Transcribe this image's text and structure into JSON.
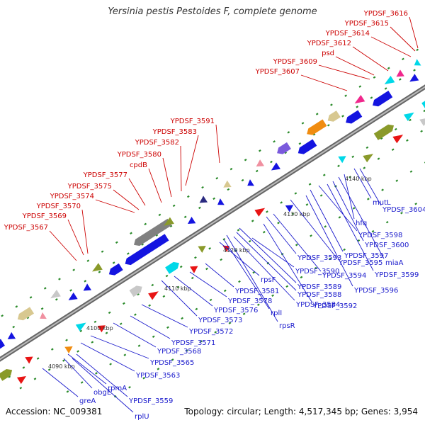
{
  "title": "Yersinia pestis Pestoides F, complete genome",
  "accession": "Accession: NC_009381",
  "summary": "Topology: circular; Length: 4,517,345 bp; Genes: 3,954",
  "colors": {
    "top_label": "#cc0000",
    "bottom_label": "#1a1acc",
    "backbone": "#888888",
    "ticks": "#2a8a2a"
  },
  "ticks": [
    "4090 kbp",
    "4100 kbp",
    "4110 kbp",
    "4120 kbp",
    "4130 kbp",
    "4140 kbp"
  ],
  "top_labels": [
    "YPDSF_3567",
    "YPDSF_3569",
    "YPDSF_3570",
    "YPDSF_3574",
    "YPDSF_3575",
    "YPDSF_3577",
    "cpdB",
    "YPDSF_3580",
    "YPDSF_3582",
    "YPDSF_3583",
    "YPDSF_3591",
    "YPDSF_3607",
    "YPDSF_3609",
    "psd",
    "YPDSF_3612",
    "YPDSF_3614",
    "YPDSF_3615",
    "YPDSF_3616"
  ],
  "bottom_labels": [
    "greA",
    "obgE",
    "rpmA",
    "rplU",
    "YPDSF_3559",
    "YPDSF_3563",
    "YPDSF_3565",
    "YPDSF_3568",
    "YPDSF_3571",
    "YPDSF_3572",
    "YPDSF_3573",
    "YPDSF_3576",
    "YPDSF_3578",
    "YPDSF_3581",
    "rpsF",
    "rplI",
    "rpsR",
    "YPDSF_3584",
    "YPDSF_3588",
    "YPDSF_3589",
    "YPDSF_3590",
    "YPDSF_3592",
    "YPDSF_3593",
    "YPDSF_3594",
    "YPDSF_3595",
    "YPDSF_3596",
    "YPDSF_3597",
    "YPDSF_3598",
    "YPDSF_3599",
    "YPDSF_3600",
    "miaA",
    "hfq",
    "mutL",
    "YPDSF_3604"
  ]
}
